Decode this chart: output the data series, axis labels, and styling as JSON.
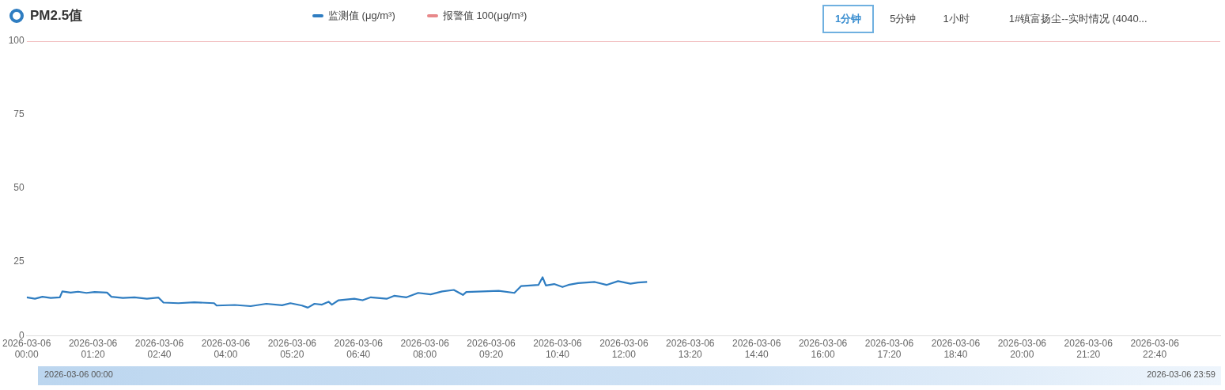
{
  "chart_data": {
    "type": "line",
    "title": "PM2.5值",
    "legend": "top",
    "grid": false,
    "marker": "none",
    "line_style": "solid",
    "xlim": [
      "2026-03-06T00:00",
      "2026-03-06T23:59"
    ],
    "ylim": [
      0,
      100
    ],
    "yticks": [
      0,
      25,
      50,
      75,
      100
    ],
    "xticks": [
      {
        "value": "2026-03-06T00:00",
        "label": "2026-03-06 00:00"
      },
      {
        "value": "2026-03-06T01:20",
        "label": "2026-03-06 01:20"
      },
      {
        "value": "2026-03-06T02:40",
        "label": "2026-03-06 02:40"
      },
      {
        "value": "2026-03-06T04:00",
        "label": "2026-03-06 04:00"
      },
      {
        "value": "2026-03-06T05:20",
        "label": "2026-03-06 05:20"
      },
      {
        "value": "2026-03-06T06:40",
        "label": "2026-03-06 06:40"
      },
      {
        "value": "2026-03-06T08:00",
        "label": "2026-03-06 08:00"
      },
      {
        "value": "2026-03-06T09:20",
        "label": "2026-03-06 09:20"
      },
      {
        "value": "2026-03-06T10:40",
        "label": "2026-03-06 10:40"
      },
      {
        "value": "2026-03-06T12:00",
        "label": "2026-03-06 12:00"
      },
      {
        "value": "2026-03-06T13:20",
        "label": "2026-03-06 13:20"
      },
      {
        "value": "2026-03-06T14:40",
        "label": "2026-03-06 14:40"
      },
      {
        "value": "2026-03-06T16:00",
        "label": "2026-03-06 16:00"
      },
      {
        "value": "2026-03-06T17:20",
        "label": "2026-03-06 17:20"
      },
      {
        "value": "2026-03-06T18:40",
        "label": "2026-03-06 18:40"
      },
      {
        "value": "2026-03-06T20:00",
        "label": "2026-03-06 20:00"
      },
      {
        "value": "2026-03-06T21:20",
        "label": "2026-03-06 21:20"
      },
      {
        "value": "2026-03-06T22:40",
        "label": "2026-03-06 22:40"
      }
    ],
    "series": [
      {
        "name": "监测值 (μg/m³)",
        "color": "#2f7dc1",
        "x": [
          "2026-03-06T00:00",
          "2026-03-06T00:10",
          "2026-03-06T00:19",
          "2026-03-06T00:29",
          "2026-03-06T00:40",
          "2026-03-06T00:43",
          "2026-03-06T00:53",
          "2026-03-06T01:02",
          "2026-03-06T01:12",
          "2026-03-06T01:22",
          "2026-03-06T01:37",
          "2026-03-06T01:42",
          "2026-03-06T01:56",
          "2026-03-06T02:10",
          "2026-03-06T02:25",
          "2026-03-06T02:39",
          "2026-03-06T02:45",
          "2026-03-06T03:03",
          "2026-03-06T03:22",
          "2026-03-06T03:46",
          "2026-03-06T03:49",
          "2026-03-06T04:11",
          "2026-03-06T04:30",
          "2026-03-06T04:49",
          "2026-03-06T05:08",
          "2026-03-06T05:18",
          "2026-03-06T05:32",
          "2026-03-06T05:39",
          "2026-03-06T05:47",
          "2026-03-06T05:56",
          "2026-03-06T06:04",
          "2026-03-06T06:08",
          "2026-03-06T06:16",
          "2026-03-06T06:35",
          "2026-03-06T06:45",
          "2026-03-06T06:55",
          "2026-03-06T07:14",
          "2026-03-06T07:23",
          "2026-03-06T07:38",
          "2026-03-06T07:52",
          "2026-03-06T08:07",
          "2026-03-06T08:21",
          "2026-03-06T08:35",
          "2026-03-06T08:46",
          "2026-03-06T08:50",
          "2026-03-06T09:10",
          "2026-03-06T09:29",
          "2026-03-06T09:48",
          "2026-03-06T09:56",
          "2026-03-06T10:07",
          "2026-03-06T10:17",
          "2026-03-06T10:22",
          "2026-03-06T10:26",
          "2026-03-06T10:36",
          "2026-03-06T10:46",
          "2026-03-06T10:53",
          "2026-03-06T11:05",
          "2026-03-06T11:25",
          "2026-03-06T11:39",
          "2026-03-06T11:53",
          "2026-03-06T12:08",
          "2026-03-06T12:17",
          "2026-03-06T12:28"
        ],
        "values": [
          13,
          12.5,
          13.2,
          12.8,
          13,
          15,
          14.6,
          14.9,
          14.5,
          14.8,
          14.6,
          13.2,
          12.8,
          13,
          12.5,
          12.9,
          11.2,
          11,
          11.3,
          11,
          10.2,
          10.4,
          10,
          10.8,
          10.3,
          11,
          10.2,
          9.5,
          10.8,
          10.5,
          11.5,
          10.5,
          12,
          12.5,
          12,
          13,
          12.5,
          13.5,
          13,
          14.5,
          14,
          15,
          15.5,
          13.8,
          14.8,
          15,
          15.2,
          14.5,
          16.8,
          17,
          17.2,
          19.8,
          17,
          17.5,
          16.5,
          17.2,
          17.8,
          18.2,
          17.2,
          18.5,
          17.6,
          18,
          18.2
        ]
      },
      {
        "name": "报警值 100(μg/m³)",
        "color": "#e8888a",
        "x": [
          "2026-03-06T00:00",
          "2026-03-06T23:59"
        ],
        "values": [
          100,
          100
        ]
      }
    ],
    "annotations": [
      "1分钟",
      "5分钟",
      "1小时",
      "1#镇富扬尘--实时情况 (4040...",
      "2026-03-06 00:00",
      "2026-03-06 23:59"
    ]
  }
}
